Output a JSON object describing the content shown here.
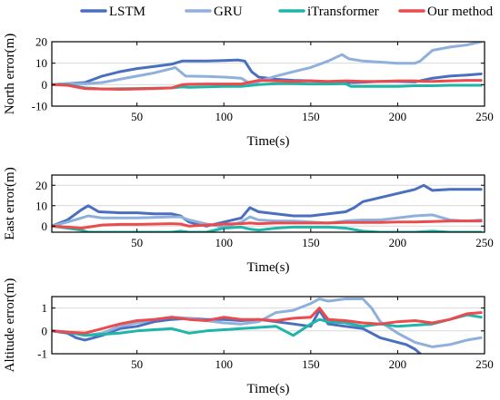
{
  "colors": {
    "LSTM": "#4a6fbf",
    "GRU": "#8fb0dc",
    "iTransformer": "#1fb5a8",
    "Our method": "#ec4b4e"
  },
  "chart_data": [
    {
      "type": "line",
      "ylabel": "North error(m)",
      "xlabel": "Time(s)",
      "xlim": [
        1,
        250
      ],
      "ylim": [
        -10,
        20
      ],
      "xticks": [
        50,
        100,
        150,
        200,
        250
      ],
      "yticks": [
        -10,
        0,
        10,
        20
      ],
      "grid": true,
      "legend_position": "top",
      "series": [
        {
          "name": "LSTM",
          "x": [
            1,
            10,
            20,
            30,
            40,
            50,
            60,
            70,
            76,
            80,
            90,
            100,
            108,
            112,
            116,
            120,
            130,
            140,
            150,
            160,
            168,
            175,
            190,
            200,
            210,
            220,
            230,
            240,
            248
          ],
          "y": [
            0,
            0.5,
            1,
            4,
            6,
            7.5,
            8.5,
            9.5,
            11,
            11,
            11,
            11.2,
            11.5,
            11,
            6,
            3.5,
            2.5,
            2,
            1.8,
            1.2,
            1,
            1,
            1.5,
            1.5,
            1.3,
            3,
            4,
            4.5,
            5
          ]
        },
        {
          "name": "GRU",
          "x": [
            1,
            10,
            20,
            30,
            40,
            50,
            60,
            70,
            72,
            78,
            90,
            100,
            110,
            116,
            120,
            130,
            140,
            150,
            160,
            168,
            172,
            180,
            190,
            200,
            210,
            213,
            220,
            230,
            240,
            248
          ],
          "y": [
            0,
            0.5,
            0.5,
            1,
            2.5,
            4,
            5.5,
            7.5,
            8,
            4,
            3.8,
            3.5,
            3,
            0,
            1.5,
            4,
            6,
            8,
            11,
            14,
            12,
            11,
            10.5,
            10,
            10,
            11,
            16,
            17.5,
            18.5,
            20
          ]
        },
        {
          "name": "iTransformer",
          "x": [
            1,
            10,
            20,
            30,
            50,
            70,
            76,
            80,
            90,
            100,
            110,
            120,
            130,
            140,
            150,
            160,
            170,
            173,
            180,
            190,
            200,
            210,
            215,
            220,
            230,
            240,
            248
          ],
          "y": [
            0,
            0,
            -1.5,
            -2,
            -1.8,
            -1.5,
            -1,
            -1.2,
            -1,
            -0.8,
            -0.8,
            0,
            0.5,
            0.5,
            0.3,
            0.3,
            0.5,
            -0.8,
            -0.8,
            -0.8,
            -0.8,
            -0.5,
            -0.5,
            -0.5,
            -0.3,
            -0.3,
            -0.3
          ]
        },
        {
          "name": "Our method",
          "x": [
            1,
            10,
            20,
            30,
            40,
            50,
            60,
            70,
            76,
            80,
            90,
            100,
            110,
            120,
            130,
            140,
            150,
            160,
            170,
            180,
            190,
            200,
            210,
            215,
            220,
            230,
            240,
            248
          ],
          "y": [
            0,
            -0.3,
            -1.8,
            -2,
            -2.2,
            -2,
            -1.8,
            -1.5,
            0,
            0.2,
            0.3,
            0.3,
            0.3,
            2,
            1.8,
            1.5,
            1.8,
            1.5,
            1.8,
            1.5,
            1.5,
            1.8,
            1.8,
            1.5,
            1.5,
            1.8,
            2,
            2
          ]
        }
      ]
    },
    {
      "type": "line",
      "ylabel": "East error(m)",
      "xlabel": "Time(s)",
      "xlim": [
        1,
        250
      ],
      "ylim": [
        -3,
        25
      ],
      "xticks": [
        50,
        100,
        150,
        200,
        250
      ],
      "yticks": [
        0,
        10,
        20
      ],
      "grid": true,
      "series": [
        {
          "name": "LSTM",
          "x": [
            1,
            10,
            18,
            22,
            28,
            40,
            50,
            60,
            70,
            75,
            80,
            90,
            100,
            110,
            115,
            120,
            130,
            140,
            150,
            160,
            170,
            175,
            180,
            190,
            200,
            210,
            215,
            220,
            230,
            240,
            248
          ],
          "y": [
            0,
            3,
            8,
            10,
            7,
            6.5,
            6.5,
            6,
            6,
            5,
            2,
            0,
            2,
            4,
            9,
            7,
            6,
            5,
            5,
            6,
            7,
            9,
            12,
            14,
            16,
            18,
            20,
            17.5,
            18,
            18,
            18
          ]
        },
        {
          "name": "GRU",
          "x": [
            1,
            10,
            18,
            22,
            30,
            50,
            70,
            75,
            80,
            90,
            100,
            110,
            115,
            120,
            130,
            140,
            150,
            160,
            170,
            180,
            190,
            200,
            210,
            220,
            230,
            240,
            248
          ],
          "y": [
            0,
            2,
            4,
            5,
            4,
            4,
            4.5,
            4.5,
            3,
            1,
            -0.5,
            2,
            4.5,
            3,
            2.5,
            2.5,
            2,
            1.5,
            2.5,
            3,
            3,
            4,
            5,
            5.5,
            3,
            2.5,
            3
          ]
        },
        {
          "name": "iTransformer",
          "x": [
            1,
            10,
            18,
            22,
            30,
            50,
            70,
            75,
            80,
            90,
            100,
            110,
            115,
            120,
            130,
            140,
            150,
            160,
            170,
            180,
            190,
            200,
            210,
            220,
            230,
            240,
            248
          ],
          "y": [
            0,
            -1,
            -2,
            -3,
            -3,
            -3,
            -3,
            -2.5,
            -3,
            -3,
            -1,
            -0.5,
            -1.5,
            -2,
            -1,
            -0.5,
            -0.5,
            -0.5,
            -1,
            -2.5,
            -3,
            -3,
            -3,
            -2.5,
            -3,
            -3,
            -3
          ]
        },
        {
          "name": "Our method",
          "x": [
            1,
            10,
            18,
            22,
            30,
            40,
            50,
            60,
            70,
            75,
            80,
            90,
            100,
            110,
            115,
            120,
            130,
            140,
            150,
            160,
            170,
            180,
            190,
            200,
            210,
            220,
            230,
            240,
            248
          ],
          "y": [
            0,
            -0.5,
            -1,
            -0.5,
            0.5,
            0.8,
            0.8,
            1,
            1.2,
            1,
            0,
            0.5,
            1,
            1.2,
            1.5,
            1.2,
            1.5,
            1.5,
            1.5,
            1.5,
            1.8,
            1.8,
            1.8,
            2,
            2,
            2.2,
            2.5,
            2.5,
            2.5
          ]
        }
      ]
    },
    {
      "type": "line",
      "ylabel": "Altitude error(m)",
      "xlabel": "Time(s)",
      "xlim": [
        1,
        250
      ],
      "ylim": [
        -1,
        1.5
      ],
      "xticks": [
        50,
        100,
        150,
        200,
        250
      ],
      "yticks": [
        -1,
        0,
        1
      ],
      "grid": true,
      "series": [
        {
          "name": "LSTM",
          "x": [
            1,
            10,
            15,
            20,
            25,
            30,
            40,
            50,
            60,
            70,
            80,
            90,
            100,
            110,
            120,
            130,
            140,
            150,
            155,
            160,
            170,
            180,
            185,
            190,
            200,
            205,
            210,
            213
          ],
          "y": [
            0,
            -0.1,
            -0.3,
            -0.4,
            -0.3,
            -0.2,
            0.1,
            0.2,
            0.4,
            0.5,
            0.55,
            0.5,
            0.5,
            0.45,
            0.5,
            0.4,
            0.3,
            0.2,
            0.9,
            0.3,
            0.2,
            0.1,
            -0.1,
            -0.3,
            -0.5,
            -0.6,
            -0.8,
            -1
          ]
        },
        {
          "name": "GRU",
          "x": [
            1,
            10,
            20,
            30,
            40,
            50,
            60,
            70,
            80,
            90,
            100,
            110,
            120,
            130,
            140,
            150,
            155,
            160,
            170,
            180,
            185,
            190,
            200,
            210,
            220,
            230,
            240,
            248
          ],
          "y": [
            0,
            -0.05,
            -0.2,
            -0.1,
            0.2,
            0.35,
            0.5,
            0.6,
            0.55,
            0.45,
            0.35,
            0.3,
            0.4,
            0.8,
            0.9,
            1.2,
            1.4,
            1.3,
            1.4,
            1.4,
            1,
            0.4,
            -0.1,
            -0.5,
            -0.7,
            -0.6,
            -0.4,
            -0.3
          ]
        },
        {
          "name": "iTransformer",
          "x": [
            1,
            10,
            20,
            30,
            40,
            50,
            60,
            70,
            80,
            90,
            100,
            110,
            120,
            130,
            140,
            150,
            155,
            160,
            170,
            180,
            190,
            200,
            210,
            220,
            230,
            240,
            248
          ],
          "y": [
            0,
            -0.05,
            -0.2,
            -0.15,
            -0.1,
            0,
            0.05,
            0.1,
            -0.1,
            0,
            0.05,
            0.1,
            0.15,
            0.2,
            -0.2,
            0.3,
            0.5,
            0.4,
            0.35,
            0.2,
            0.3,
            0.2,
            0.25,
            0.3,
            0.5,
            0.7,
            0.6
          ]
        },
        {
          "name": "Our method",
          "x": [
            1,
            10,
            20,
            30,
            40,
            50,
            60,
            70,
            80,
            90,
            100,
            110,
            120,
            130,
            140,
            150,
            155,
            160,
            170,
            180,
            190,
            200,
            210,
            220,
            230,
            240,
            248
          ],
          "y": [
            0,
            -0.05,
            -0.1,
            0.1,
            0.3,
            0.45,
            0.5,
            0.6,
            0.5,
            0.45,
            0.6,
            0.5,
            0.5,
            0.45,
            0.55,
            0.6,
            1.0,
            0.5,
            0.45,
            0.35,
            0.3,
            0.4,
            0.45,
            0.35,
            0.5,
            0.75,
            0.8
          ]
        }
      ]
    }
  ]
}
